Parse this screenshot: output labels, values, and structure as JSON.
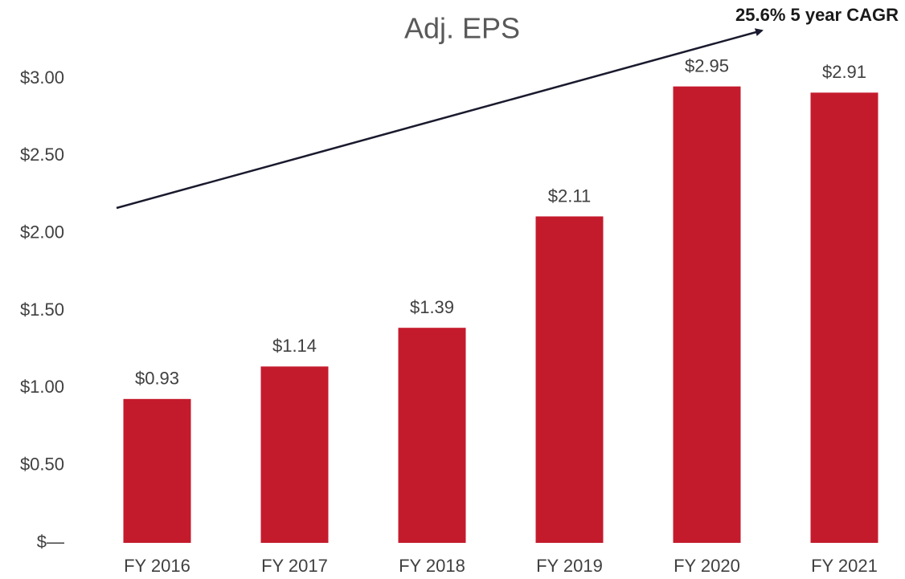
{
  "chart_data": {
    "type": "bar",
    "title": "Adj. EPS",
    "categories": [
      "FY 2016",
      "FY 2017",
      "FY 2018",
      "FY 2019",
      "FY 2020",
      "FY 2021"
    ],
    "values": [
      0.93,
      1.14,
      1.39,
      2.11,
      2.95,
      2.91
    ],
    "value_labels": [
      "$0.93",
      "$1.14",
      "$1.39",
      "$2.11",
      "$2.95",
      "$2.91"
    ],
    "color": "#c41b2c",
    "ylim": [
      0,
      3
    ],
    "yticks": [
      {
        "value": 0,
        "label": "$—"
      },
      {
        "value": 0.5,
        "label": "$0.50"
      },
      {
        "value": 1,
        "label": "$1.00"
      },
      {
        "value": 1.5,
        "label": "$1.50"
      },
      {
        "value": 2,
        "label": "$2.00"
      },
      {
        "value": 2.5,
        "label": "$2.50"
      },
      {
        "value": 3,
        "label": "$3.00"
      }
    ],
    "grid": false,
    "annotation": "25.6% 5 year CAGR"
  }
}
